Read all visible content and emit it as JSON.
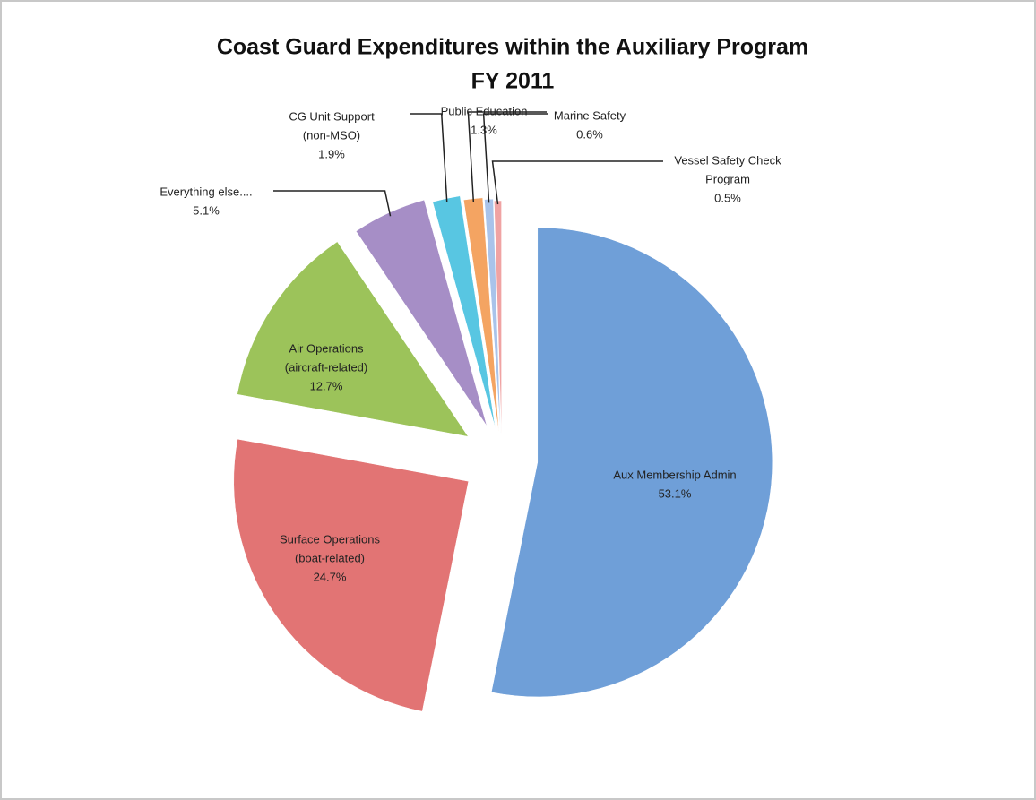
{
  "chart_data": {
    "type": "pie",
    "title": "Coast Guard Expenditures within the Auxiliary Program",
    "subtitle": "FY 2011",
    "categories": [
      [
        "Aux Membership Admin"
      ],
      [
        "Surface Operations",
        "(boat-related)"
      ],
      [
        "Air Operations",
        "(aircraft-related)"
      ],
      [
        "Everything else...."
      ],
      [
        "CG Unit Support",
        "(non-MSO)"
      ],
      [
        "Public Education"
      ],
      [
        "Marine Safety"
      ],
      [
        "Vessel Safety Check",
        "Program"
      ]
    ],
    "values": [
      53.1,
      24.7,
      12.7,
      5.1,
      1.9,
      1.3,
      0.6,
      0.5
    ],
    "value_labels": [
      "53.1%",
      "24.7%",
      "12.7%",
      "5.1%",
      "1.9%",
      "1.3%",
      "0.6%",
      "0.5%"
    ],
    "colors": [
      "#6f9fd8",
      "#e27474",
      "#9cc35a",
      "#a68ec6",
      "#58c6e2",
      "#f4a462",
      "#a9c3ea",
      "#f0a3a3"
    ]
  }
}
